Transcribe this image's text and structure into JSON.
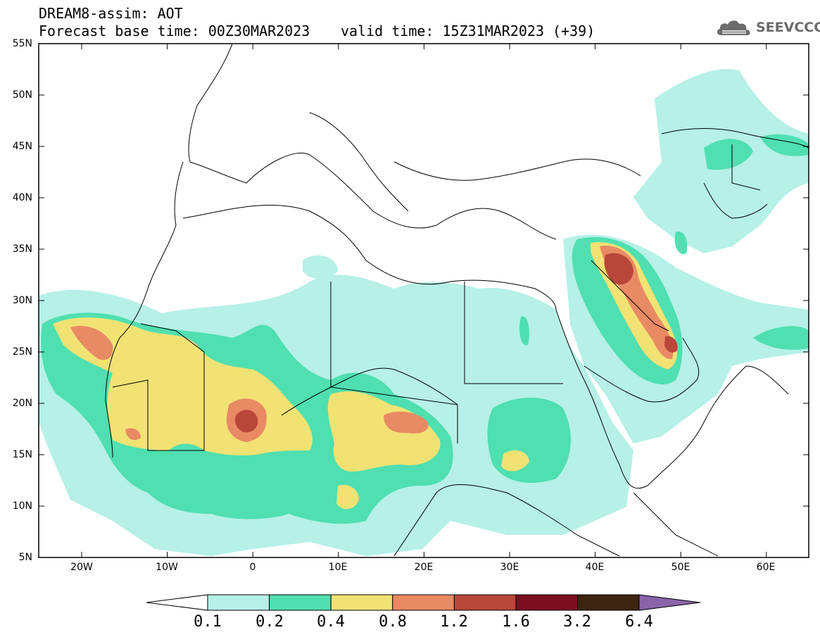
{
  "header": {
    "model_title": "DREAM8-assim: AOT",
    "base_time": "Forecast base time: 00Z30MAR2023",
    "valid_time": "valid time: 15Z31MAR2023 (+39)"
  },
  "logo": {
    "text": "SEEVCCC",
    "icon": "cloud-logo-icon"
  },
  "axes": {
    "lat_labels": [
      "55N",
      "50N",
      "45N",
      "40N",
      "35N",
      "30N",
      "25N",
      "20N",
      "15N",
      "10N",
      "5N"
    ],
    "lon_labels": [
      "20W",
      "10W",
      "0",
      "10E",
      "20E",
      "30E",
      "40E",
      "50E",
      "60E"
    ]
  },
  "colorbar": {
    "labels": [
      "0.1",
      "0.2",
      "0.4",
      "0.8",
      "1.2",
      "1.6",
      "3.2",
      "6.4"
    ],
    "colors": [
      "#b6f0e6",
      "#4fdfb0",
      "#f2e274",
      "#e88a64",
      "#b8473a",
      "#7a0f20",
      "#3d2410",
      "#8a64a8"
    ]
  },
  "field_colors": {
    "level1": "#b6f0e6",
    "level2": "#4fdfb0",
    "level3": "#f2e274",
    "level4": "#e88a64",
    "level5": "#b8473a"
  }
}
